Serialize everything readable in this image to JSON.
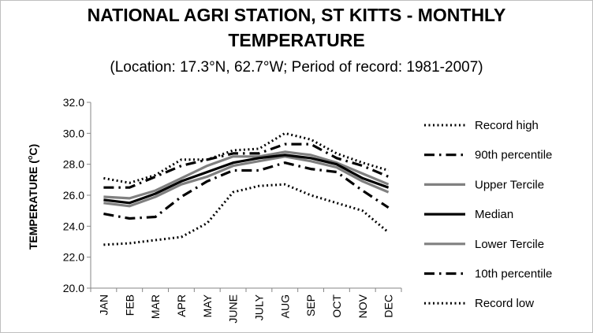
{
  "chart_data": {
    "type": "line",
    "title_line1": "NATIONAL AGRI STATION, ST KITTS - MONTHLY",
    "title_line2": "TEMPERATURE",
    "subtitle": "(Location: 17.3°N, 62.7°W; Period of record: 1981-2007)",
    "ylabel_main": "TEMPERATURE (",
    "ylabel_sup": "o",
    "ylabel_end": "C)",
    "xlabel": "",
    "ylim": [
      20.0,
      32.0
    ],
    "y_ticks": [
      "20.0",
      "22.0",
      "24.0",
      "26.0",
      "28.0",
      "30.0",
      "32.0"
    ],
    "categories": [
      "JAN",
      "FEB",
      "MAR",
      "APR",
      "MAY",
      "JUNE",
      "JULY",
      "AUG",
      "SEP",
      "OCT",
      "NOV",
      "DEC"
    ],
    "grid": false,
    "legend_position": "right",
    "series": [
      {
        "name": "Record high",
        "style": "dotted",
        "color": "#000000",
        "values": [
          27.1,
          26.8,
          27.3,
          28.3,
          28.3,
          28.9,
          29.0,
          30.0,
          29.6,
          28.7,
          28.1,
          27.6
        ]
      },
      {
        "name": "90th percentile",
        "style": "dashdot",
        "color": "#000000",
        "values": [
          26.5,
          26.5,
          27.2,
          27.9,
          28.3,
          28.7,
          28.7,
          29.3,
          29.3,
          28.4,
          27.9,
          27.2
        ]
      },
      {
        "name": "Upper Tercile",
        "style": "solid",
        "color": "#808080",
        "values": [
          25.9,
          25.8,
          26.3,
          27.1,
          27.9,
          28.5,
          28.5,
          28.8,
          28.6,
          28.1,
          27.4,
          26.7
        ]
      },
      {
        "name": "Median",
        "style": "solid",
        "color": "#000000",
        "values": [
          25.7,
          25.5,
          26.1,
          26.9,
          27.5,
          28.1,
          28.4,
          28.6,
          28.4,
          28.0,
          27.1,
          26.5
        ]
      },
      {
        "name": "Lower Tercile",
        "style": "solid",
        "color": "#808080",
        "values": [
          25.5,
          25.3,
          25.9,
          26.7,
          27.2,
          27.9,
          28.2,
          28.5,
          28.2,
          27.8,
          26.9,
          26.2
        ]
      },
      {
        "name": "10th percentile",
        "style": "dashdot",
        "color": "#000000",
        "values": [
          24.8,
          24.5,
          24.6,
          25.9,
          26.9,
          27.6,
          27.6,
          28.1,
          27.7,
          27.5,
          26.3,
          25.2
        ]
      },
      {
        "name": "Record low",
        "style": "dotted",
        "color": "#000000",
        "values": [
          22.8,
          22.9,
          23.1,
          23.3,
          24.2,
          26.2,
          26.6,
          26.7,
          26.0,
          25.5,
          25.0,
          23.6
        ]
      }
    ]
  }
}
